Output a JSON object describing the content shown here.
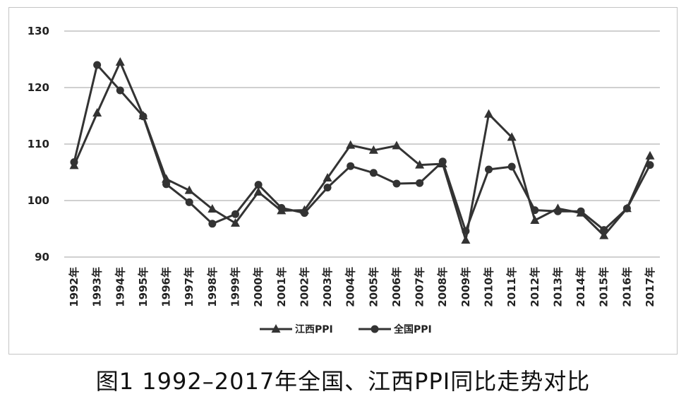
{
  "caption": "图1 1992–2017年全国、江西PPI同比走势对比",
  "chart_data": {
    "type": "line",
    "title": "",
    "xlabel": "",
    "ylabel": "",
    "ylim": [
      90,
      130
    ],
    "yticks": [
      90,
      100,
      110,
      120,
      130
    ],
    "grid": true,
    "legend_position": "bottom",
    "categories": [
      "1992年",
      "1993年",
      "1994年",
      "1995年",
      "1996年",
      "1997年",
      "1998年",
      "1999年",
      "2000年",
      "2001年",
      "2002年",
      "2003年",
      "2004年",
      "2005年",
      "2006年",
      "2007年",
      "2008年",
      "2009年",
      "2010年",
      "2011年",
      "2012年",
      "2013年",
      "2014年",
      "2015年",
      "2016年",
      "2017年"
    ],
    "series": [
      {
        "name": "江西PPI",
        "marker": "triangle",
        "color": "#333333",
        "values": [
          106.2,
          115.5,
          124.5,
          115.0,
          103.8,
          101.8,
          98.5,
          96.0,
          101.5,
          98.2,
          98.3,
          104.0,
          109.8,
          108.9,
          109.7,
          106.3,
          106.5,
          93.0,
          115.3,
          111.2,
          96.5,
          98.6,
          97.8,
          93.8,
          98.6,
          107.9
        ]
      },
      {
        "name": "全国PPI",
        "marker": "circle",
        "color": "#333333",
        "values": [
          106.8,
          124.0,
          119.5,
          114.9,
          102.9,
          99.7,
          95.9,
          97.6,
          102.8,
          98.7,
          97.8,
          102.3,
          106.1,
          104.9,
          103.0,
          103.1,
          106.9,
          94.6,
          105.5,
          106.0,
          98.3,
          98.1,
          98.1,
          94.8,
          98.6,
          106.3
        ]
      }
    ]
  }
}
